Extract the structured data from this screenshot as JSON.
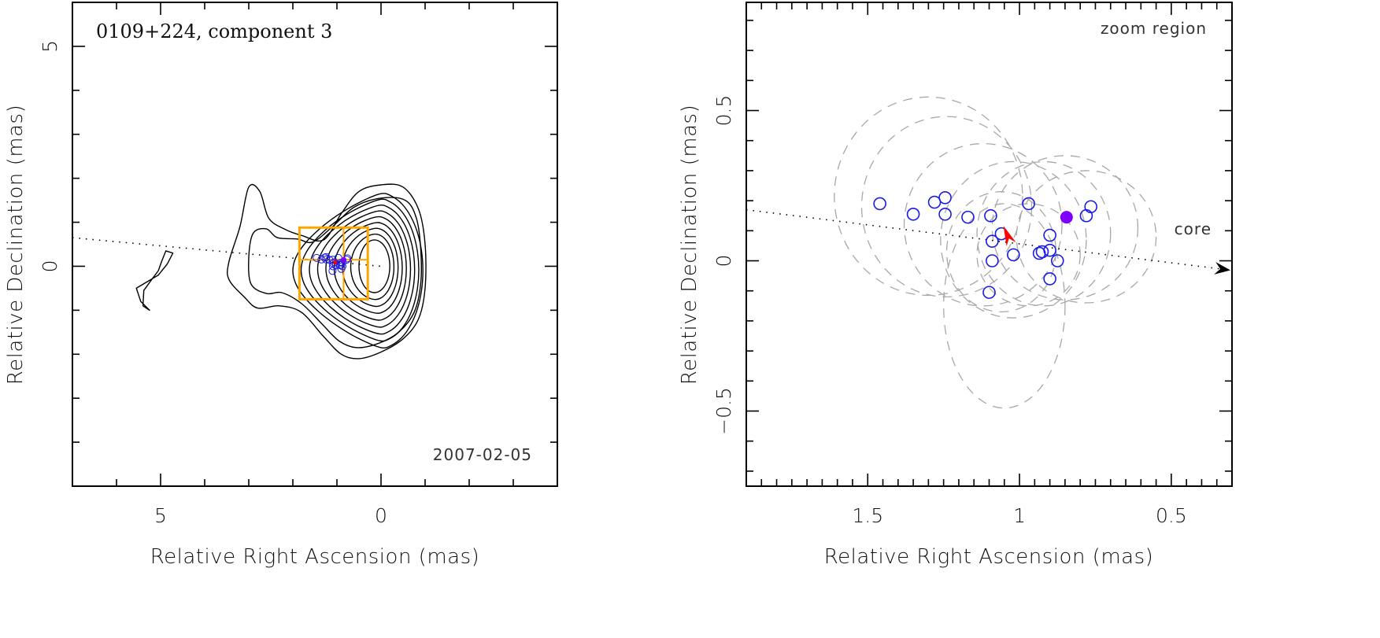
{
  "chart_data": [
    {
      "type": "scatter",
      "panel": "overview",
      "title": "0109+224, component 3",
      "epoch_label": "2007-02-05",
      "xlabel": "Relative Right Ascension (mas)",
      "ylabel": "Relative Declination (mas)",
      "xlim": [
        7.0,
        -4.0
      ],
      "ylim": [
        -5.0,
        6.0
      ],
      "x_major_ticks": [
        5,
        0
      ],
      "x_tick_labels": [
        "5",
        "0"
      ],
      "x_minor_step": 1,
      "y_major_ticks": [
        5,
        0
      ],
      "y_tick_labels": [
        "5",
        "0"
      ],
      "y_minor_step": 1,
      "grid": false,
      "contour_color": "#000000",
      "contour_levels_count": 11,
      "jet_axis": {
        "from": [
          7.0,
          0.65
        ],
        "to": [
          0.0,
          0.0
        ],
        "style": "dotted"
      },
      "zoom_box": {
        "x_range": [
          1.85,
          0.3
        ],
        "y_range": [
          -0.75,
          0.88
        ],
        "divider_x": 0.85,
        "divider_y": 0.15,
        "color": "#ffa500"
      },
      "candidate_positions_color": "#1a1ae6",
      "marker_core_color": "#7f00ff",
      "marker_pointer_color": "#ff0000"
    },
    {
      "type": "scatter",
      "panel": "zoom",
      "annotation": "zoom region",
      "core_label": "core",
      "xlabel": "Relative Right Ascension (mas)",
      "ylabel": "Relative Declination (mas)",
      "xlim": [
        1.9,
        0.3
      ],
      "ylim": [
        -0.75,
        0.86
      ],
      "x_major_ticks": [
        1.5,
        1.0,
        0.5
      ],
      "x_tick_labels": [
        "1.5",
        "1",
        "0.5"
      ],
      "x_minor_step": 0.05,
      "y_major_ticks": [
        0.5,
        0.0,
        -0.5
      ],
      "y_tick_labels": [
        "0.5",
        "0",
        "−0.5"
      ],
      "y_minor_step": 0.1,
      "grid": false,
      "jet_axis": {
        "from": [
          1.9,
          0.17
        ],
        "to": [
          0.3,
          -0.03
        ],
        "style": "dotted-arrow"
      },
      "candidate_color": "#1a1ae6",
      "candidates": [
        {
          "x": 1.46,
          "y": 0.19
        },
        {
          "x": 1.35,
          "y": 0.155
        },
        {
          "x": 1.28,
          "y": 0.195
        },
        {
          "x": 1.245,
          "y": 0.21
        },
        {
          "x": 1.245,
          "y": 0.155
        },
        {
          "x": 1.17,
          "y": 0.145
        },
        {
          "x": 1.095,
          "y": 0.15
        },
        {
          "x": 0.97,
          "y": 0.19
        },
        {
          "x": 1.06,
          "y": 0.09
        },
        {
          "x": 1.09,
          "y": 0.065
        },
        {
          "x": 1.09,
          "y": 0.0
        },
        {
          "x": 1.02,
          "y": 0.02
        },
        {
          "x": 0.935,
          "y": 0.025
        },
        {
          "x": 0.925,
          "y": 0.03
        },
        {
          "x": 0.9,
          "y": 0.035
        },
        {
          "x": 0.875,
          "y": 0.0
        },
        {
          "x": 0.9,
          "y": 0.085
        },
        {
          "x": 0.9,
          "y": -0.06
        },
        {
          "x": 1.1,
          "y": -0.105
        },
        {
          "x": 0.78,
          "y": 0.15
        },
        {
          "x": 0.765,
          "y": 0.18
        }
      ],
      "uncertainty_ellipses_color": "#a8a8a8",
      "uncertainty_ellipses": [
        {
          "cx": 1.3,
          "cy": 0.215,
          "rx": 0.31,
          "ry": 0.33
        },
        {
          "cx": 1.24,
          "cy": 0.18,
          "rx": 0.28,
          "ry": 0.3
        },
        {
          "cx": 1.12,
          "cy": 0.12,
          "rx": 0.26,
          "ry": 0.27
        },
        {
          "cx": 1.02,
          "cy": 0.07,
          "rx": 0.24,
          "ry": 0.26
        },
        {
          "cx": 1.05,
          "cy": -0.15,
          "rx": 0.2,
          "ry": 0.34
        },
        {
          "cx": 0.92,
          "cy": 0.09,
          "rx": 0.22,
          "ry": 0.24
        },
        {
          "cx": 0.85,
          "cy": 0.11,
          "rx": 0.24,
          "ry": 0.24
        },
        {
          "cx": 0.78,
          "cy": 0.08,
          "rx": 0.23,
          "ry": 0.22
        },
        {
          "cx": 0.97,
          "cy": 0.02,
          "rx": 0.17,
          "ry": 0.17
        },
        {
          "cx": 1.06,
          "cy": 0.03,
          "rx": 0.18,
          "ry": 0.2
        }
      ],
      "mean_position": {
        "x": 0.845,
        "y": 0.145,
        "color": "#7f00ff"
      },
      "pointer": {
        "x": 1.04,
        "y": 0.09,
        "color": "#ff0000"
      }
    }
  ]
}
